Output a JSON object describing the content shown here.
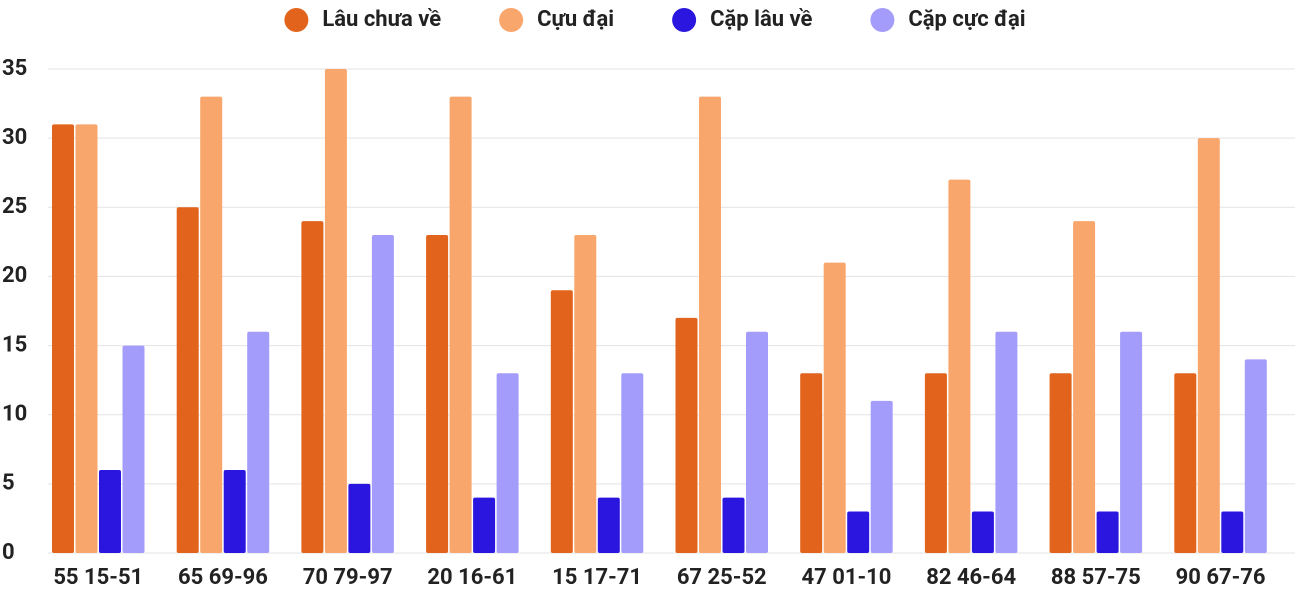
{
  "chart_data": {
    "type": "bar",
    "categories": [
      "55 15-51",
      "65 69-96",
      "70 79-97",
      "20 16-61",
      "15 17-71",
      "67 25-52",
      "47 01-10",
      "82 46-64",
      "88 57-75",
      "90 67-76"
    ],
    "series": [
      {
        "name": "Lâu chưa về",
        "color": "#e2631b",
        "values": [
          31,
          25,
          24,
          23,
          19,
          17,
          13,
          13,
          13,
          13
        ]
      },
      {
        "name": "Cựu đại",
        "color": "#f9a66c",
        "values": [
          31,
          33,
          35,
          33,
          23,
          33,
          21,
          27,
          24,
          30
        ]
      },
      {
        "name": "Cặp lâu về",
        "color": "#2b16e0",
        "values": [
          6,
          6,
          5,
          4,
          4,
          4,
          3,
          3,
          3,
          3
        ]
      },
      {
        "name": "Cặp cực đại",
        "color": "#a39cfa",
        "values": [
          15,
          16,
          23,
          13,
          13,
          16,
          11,
          16,
          16,
          14
        ]
      }
    ],
    "ylim": [
      0,
      35
    ],
    "yticks": [
      0,
      5,
      10,
      15,
      20,
      25,
      30,
      35
    ],
    "grid": true,
    "legend": "top"
  }
}
